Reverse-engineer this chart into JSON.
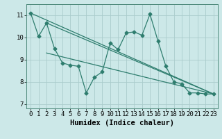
{
  "xlabel": "Humidex (Indice chaleur)",
  "ylabel": "",
  "background_color": "#cce8e8",
  "grid_color": "#aacccc",
  "line_color": "#2e7d6e",
  "xlim": [
    -0.5,
    23.5
  ],
  "ylim": [
    6.8,
    11.5
  ],
  "yticks": [
    7,
    8,
    9,
    10,
    11
  ],
  "xticks": [
    0,
    1,
    2,
    3,
    4,
    5,
    6,
    7,
    8,
    9,
    10,
    11,
    12,
    13,
    14,
    15,
    16,
    17,
    18,
    19,
    20,
    21,
    22,
    23
  ],
  "series_x": [
    0,
    1,
    2,
    3,
    4,
    5,
    6,
    7,
    8,
    9,
    10,
    11,
    12,
    13,
    14,
    15,
    16,
    17,
    18,
    19,
    20,
    21,
    22,
    23
  ],
  "series_y": [
    11.1,
    10.05,
    10.65,
    9.5,
    8.85,
    8.75,
    8.7,
    7.5,
    8.2,
    8.45,
    9.75,
    9.45,
    10.2,
    10.25,
    10.1,
    11.05,
    9.85,
    8.7,
    8.0,
    7.9,
    7.5,
    7.5,
    7.45,
    7.45
  ],
  "trend_lines": [
    {
      "x": [
        0,
        23
      ],
      "y": [
        11.1,
        7.45
      ]
    },
    {
      "x": [
        2,
        23
      ],
      "y": [
        10.65,
        7.45
      ]
    },
    {
      "x": [
        2,
        23
      ],
      "y": [
        9.3,
        7.45
      ]
    }
  ],
  "tick_fontsize": 6.5,
  "xlabel_fontsize": 7.5,
  "marker": "D",
  "markersize": 2.5,
  "linewidth": 0.9
}
